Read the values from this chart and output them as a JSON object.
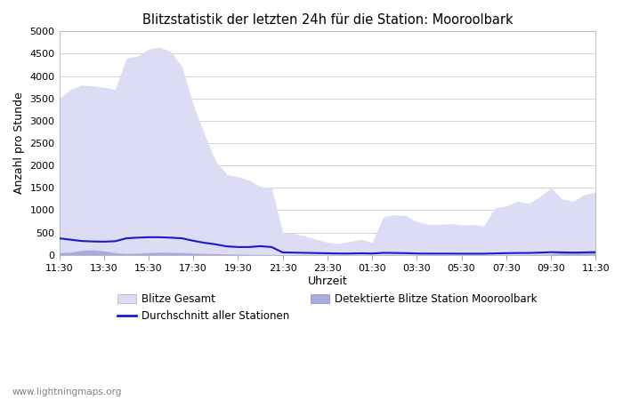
{
  "title": "Blitzstatistik der letzten 24h für die Station: Mooroolbark",
  "xlabel": "Uhrzeit",
  "ylabel": "Anzahl pro Stunde",
  "watermark": "www.lightningmaps.org",
  "ylim": [
    0,
    5000
  ],
  "yticks": [
    0,
    500,
    1000,
    1500,
    2000,
    2500,
    3000,
    3500,
    4000,
    4500,
    5000
  ],
  "x_labels": [
    "11:30",
    "13:30",
    "15:30",
    "17:30",
    "19:30",
    "21:30",
    "23:30",
    "01:30",
    "03:30",
    "05:30",
    "07:30",
    "09:30",
    "11:30"
  ],
  "background_color": "#ffffff",
  "plot_bg_color": "#ffffff",
  "grid_color": "#cccccc",
  "color_gesamt_fill": "#dcdcf5",
  "color_station_fill": "#aaaadd",
  "color_avg_line": "#1a1acc",
  "legend_gesamt_color": "#dcdcf5",
  "legend_station_color": "#aaaadd",
  "time_points": [
    0,
    1,
    2,
    3,
    4,
    5,
    6,
    7,
    8,
    9,
    10,
    11,
    12,
    13,
    14,
    15,
    16,
    17,
    18,
    19,
    20,
    21,
    22,
    23,
    24,
    25,
    26,
    27,
    28,
    29,
    30,
    31,
    32,
    33,
    34,
    35,
    36,
    37,
    38,
    39,
    40,
    41,
    42,
    43,
    44,
    45,
    46,
    47,
    48
  ],
  "blitze_gesamt": [
    3500,
    3700,
    3800,
    3780,
    3750,
    3700,
    4400,
    4450,
    4600,
    4650,
    4550,
    4200,
    3350,
    2700,
    2100,
    1800,
    1750,
    1670,
    1530,
    1500,
    500,
    480,
    420,
    350,
    280,
    250,
    300,
    350,
    280,
    850,
    900,
    880,
    750,
    680,
    680,
    700,
    670,
    680,
    650,
    1050,
    1100,
    1200,
    1150,
    1300,
    1500,
    1250,
    1200,
    1350,
    1400
  ],
  "blitze_station": [
    50,
    60,
    100,
    110,
    90,
    50,
    30,
    40,
    50,
    60,
    55,
    50,
    40,
    30,
    25,
    20,
    15,
    10,
    8,
    5,
    3,
    2,
    2,
    2,
    1,
    1,
    1,
    1,
    1,
    2,
    2,
    2,
    1,
    1,
    1,
    1,
    1,
    1,
    1,
    2,
    3,
    4,
    5,
    10,
    20,
    50,
    60,
    80,
    90
  ],
  "blitze_avg": [
    370,
    340,
    310,
    300,
    295,
    305,
    370,
    385,
    395,
    395,
    385,
    370,
    315,
    270,
    235,
    190,
    175,
    175,
    195,
    175,
    55,
    50,
    45,
    40,
    35,
    30,
    30,
    35,
    30,
    45,
    42,
    38,
    30,
    28,
    28,
    28,
    26,
    26,
    26,
    32,
    38,
    42,
    42,
    50,
    60,
    55,
    50,
    55,
    60
  ]
}
